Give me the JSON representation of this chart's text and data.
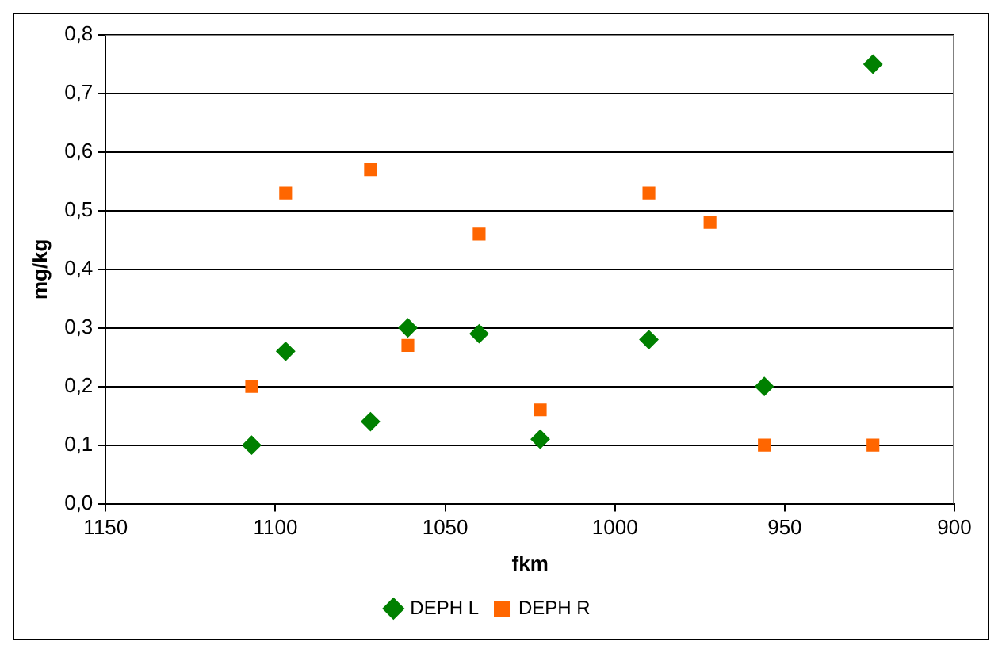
{
  "chart_data": {
    "type": "scatter",
    "xlabel": "fkm",
    "ylabel": "mg/kg",
    "xlim": [
      1150,
      900
    ],
    "xticks": [
      1150,
      1100,
      1050,
      1000,
      950,
      900
    ],
    "ylim": [
      0,
      0.8
    ],
    "yticks": [
      {
        "value": 0,
        "label": "0,0"
      },
      {
        "value": 0.1,
        "label": "0,1"
      },
      {
        "value": 0.2,
        "label": "0,2"
      },
      {
        "value": 0.3,
        "label": "0,3"
      },
      {
        "value": 0.4,
        "label": "0,4"
      },
      {
        "value": 0.5,
        "label": "0,5"
      },
      {
        "value": 0.6,
        "label": "0,6"
      },
      {
        "value": 0.7,
        "label": "0,7"
      },
      {
        "value": 0.8,
        "label": "0,8"
      }
    ],
    "grid": "y",
    "legend": "bottom",
    "series": [
      {
        "name": "DEPH L",
        "color": "#008000",
        "marker": "diamond",
        "x": [
          1107,
          1097,
          1072,
          1061,
          1040,
          1022,
          990,
          956,
          924
        ],
        "values": [
          0.1,
          0.26,
          0.14,
          0.3,
          0.29,
          0.11,
          0.28,
          0.2,
          0.75
        ]
      },
      {
        "name": "DEPH R",
        "color": "#ff6600",
        "marker": "square",
        "x": [
          1107,
          1097,
          1072,
          1061,
          1040,
          1022,
          990,
          972,
          956,
          924
        ],
        "values": [
          0.2,
          0.53,
          0.57,
          0.27,
          0.46,
          0.16,
          0.53,
          0.48,
          0.1,
          0.1
        ]
      }
    ]
  }
}
